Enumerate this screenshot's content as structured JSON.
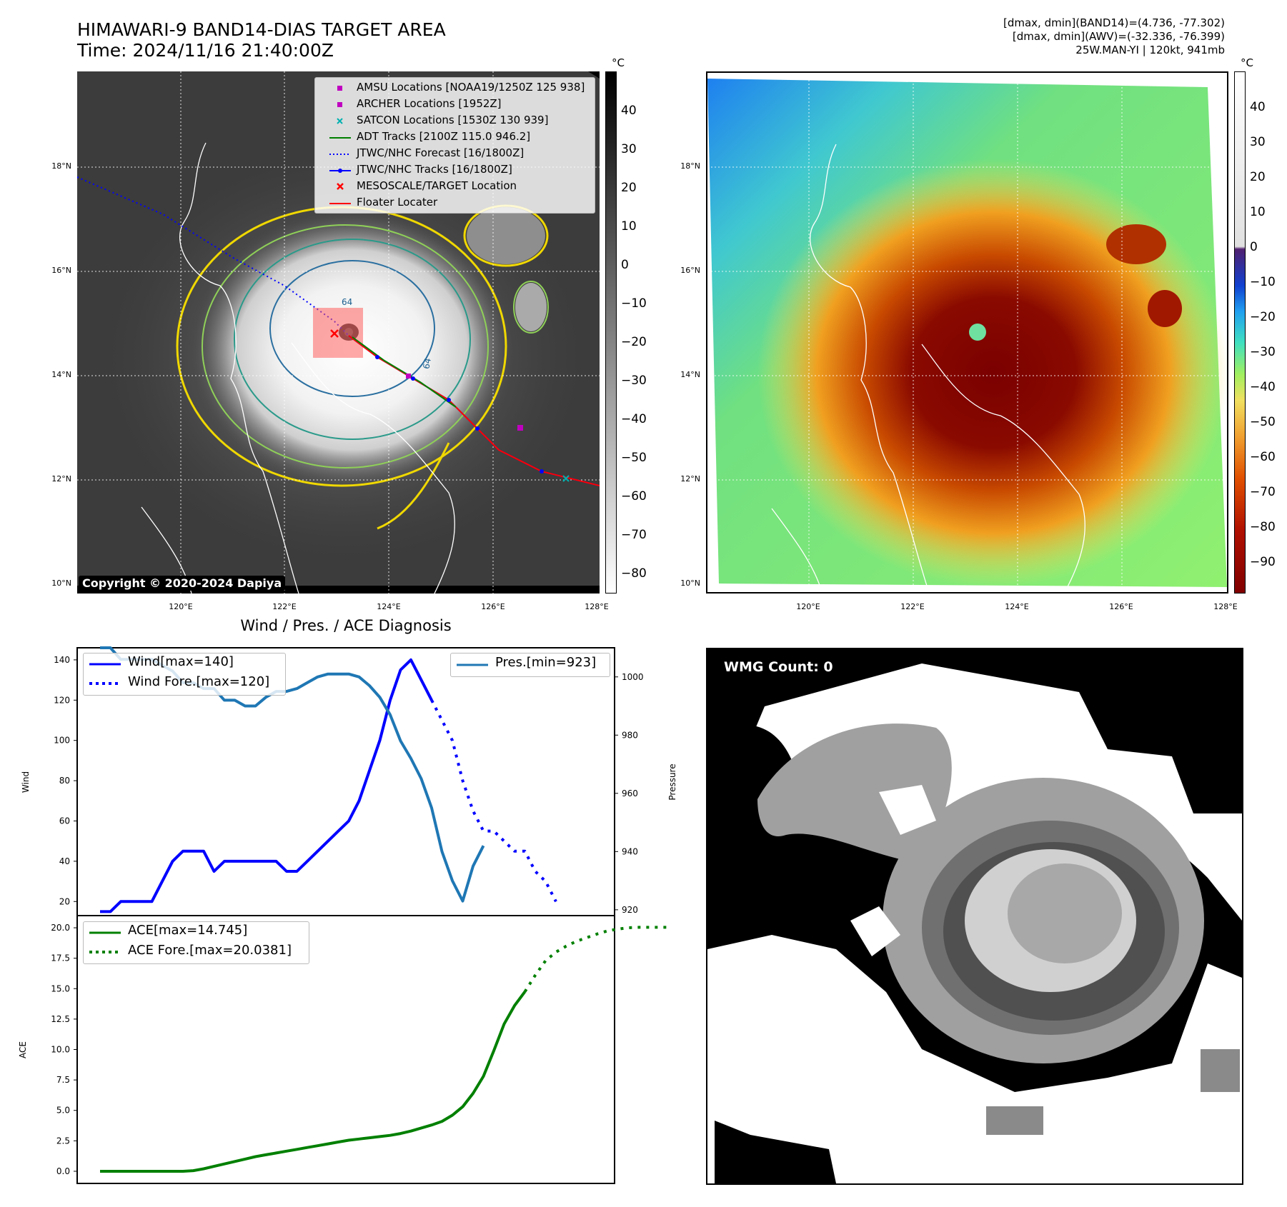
{
  "header": {
    "title_line1": "HIMAWARI-9 BAND14-DIAS TARGET AREA",
    "title_line2": "Time: 2024/11/16 21:40:00Z",
    "info_line1": "[dmax, dmin](BAND14)=(4.736, -77.302)",
    "info_line2": "[dmax, dmin](AWV)=(-32.336, -76.399)",
    "info_line3": "25W.MAN-YI | 120kt, 941mb"
  },
  "map_axes": {
    "lat_ticks": [
      "18°N",
      "16°N",
      "14°N",
      "12°N",
      "10°N"
    ],
    "lon_ticks": [
      "120°E",
      "122°E",
      "124°E",
      "126°E",
      "128°E"
    ],
    "unit": "°C"
  },
  "ir_colorbar": {
    "ticks": [
      "40",
      "30",
      "20",
      "10",
      "0",
      "−10",
      "−20",
      "−30",
      "−40",
      "−50",
      "−60",
      "−70",
      "−80"
    ]
  },
  "awv_colorbar": {
    "ticks": [
      "40",
      "30",
      "20",
      "10",
      "0",
      "−10",
      "−20",
      "−30",
      "−40",
      "−50",
      "−60",
      "−70",
      "−80",
      "−90"
    ]
  },
  "map_legend": [
    {
      "label": "AMSU Locations [NOAA19/1250Z 125 938]",
      "color": "#c000c0",
      "marker": "square"
    },
    {
      "label": "ARCHER Locations [1952Z]",
      "color": "#c000c0",
      "marker": "square"
    },
    {
      "label": "SATCON Locations [1530Z 130 939]",
      "color": "#00b0b0",
      "marker": "x"
    },
    {
      "label": "ADT Tracks [2100Z 115.0 946.2]",
      "color": "#008000",
      "marker": "line"
    },
    {
      "label": "JTWC/NHC Forecast [16/1800Z]",
      "color": "#0000ff",
      "marker": "dotted"
    },
    {
      "label": "JTWC/NHC Tracks [16/1800Z]",
      "color": "#0000ff",
      "marker": "line-dot"
    },
    {
      "label": "MESOSCALE/TARGET Location",
      "color": "#ff0000",
      "marker": "x"
    },
    {
      "label": "Floater Locater",
      "color": "#ff0000",
      "marker": "line"
    }
  ],
  "contour_labels": [
    "64",
    "64"
  ],
  "copyright": "Copyright © 2020-2024 Dapiya",
  "wmg_label": "WMG Count: 0",
  "diag": {
    "title": "Wind / Pres. / ACE Diagnosis",
    "wind_ylabel": "Wind",
    "pres_ylabel": "Pressure",
    "ace_ylabel": "ACE",
    "wind_legend": [
      "Wind[max=140]",
      "Wind Fore.[max=120]"
    ],
    "pres_legend": [
      "Pres.[min=923]"
    ],
    "ace_legend": [
      "ACE[max=14.745]",
      "ACE Fore.[max=20.0381]"
    ],
    "wind_ticks": [
      "20",
      "40",
      "60",
      "80",
      "100",
      "120",
      "140"
    ],
    "pres_ticks": [
      "920",
      "940",
      "960",
      "980",
      "1000"
    ],
    "ace_ticks": [
      "0.0",
      "2.5",
      "5.0",
      "7.5",
      "10.0",
      "12.5",
      "15.0",
      "17.5",
      "20.0"
    ]
  },
  "chart_data": {
    "type": "line",
    "title": "Wind / Pres. / ACE Diagnosis",
    "wind_ylim": [
      13,
      146
    ],
    "pres_ylim": [
      918,
      1010
    ],
    "ace_ylim": [
      -1,
      21
    ],
    "series": [
      {
        "name": "Wind[max=140]",
        "axis": "wind",
        "values": [
          15,
          15,
          20,
          20,
          20,
          20,
          30,
          40,
          45,
          45,
          45,
          35,
          40,
          40,
          40,
          40,
          40,
          40,
          35,
          35,
          40,
          45,
          50,
          55,
          60,
          70,
          85,
          100,
          120,
          135,
          140,
          130,
          120
        ]
      },
      {
        "name": "Wind Fore.[max=120]",
        "axis": "wind",
        "offset": 32,
        "values": [
          120,
          110,
          100,
          80,
          65,
          55,
          55,
          50,
          45,
          45,
          35,
          30,
          20
        ]
      },
      {
        "name": "Pres.[min=923]",
        "axis": "pres",
        "values": [
          1010,
          1010,
          1006,
          1006,
          1006,
          1006,
          1004,
          1002,
          998,
          998,
          996,
          996,
          992,
          992,
          990,
          990,
          993,
          995,
          995,
          996,
          998,
          1000,
          1001,
          1001,
          1001,
          1000,
          997,
          993,
          987,
          978,
          972,
          965,
          955,
          940,
          930,
          923,
          935,
          942
        ]
      },
      {
        "name": "ACE[max=14.745]",
        "axis": "ace",
        "values": [
          0,
          0,
          0,
          0,
          0,
          0,
          0,
          0,
          0,
          0.05,
          0.2,
          0.4,
          0.6,
          0.8,
          1.0,
          1.2,
          1.35,
          1.5,
          1.65,
          1.8,
          1.95,
          2.1,
          2.25,
          2.4,
          2.55,
          2.65,
          2.75,
          2.85,
          2.95,
          3.1,
          3.3,
          3.55,
          3.8,
          4.1,
          4.6,
          5.3,
          6.4,
          7.8,
          9.9,
          12.1,
          13.6,
          14.745
        ]
      },
      {
        "name": "ACE Fore.[max=20.0381]",
        "axis": "ace",
        "offset": 41,
        "values": [
          14.745,
          16.1,
          17.3,
          18.0,
          18.5,
          18.9,
          19.2,
          19.5,
          19.75,
          19.9,
          20.0,
          20.0381,
          20.0381,
          20.0381,
          20.0381
        ]
      }
    ]
  }
}
